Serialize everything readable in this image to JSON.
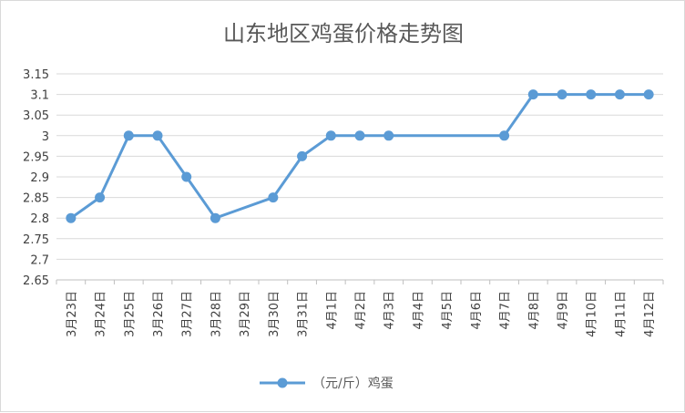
{
  "chart_data": {
    "type": "line",
    "title": "山东地区鸡蛋价格走势图",
    "xlabel": "",
    "ylabel": "",
    "categories": [
      "3月23日",
      "3月24日",
      "3月25日",
      "3月26日",
      "3月27日",
      "3月28日",
      "3月29日",
      "3月30日",
      "3月31日",
      "4月1日",
      "4月2日",
      "4月3日",
      "4月4日",
      "4月5日",
      "4月6日",
      "4月7日",
      "4月8日",
      "4月9日",
      "4月10日",
      "4月11日",
      "4月12日"
    ],
    "series": [
      {
        "name": "（元/斤）鸡蛋",
        "values": [
          2.8,
          2.85,
          3.0,
          3.0,
          2.9,
          2.8,
          null,
          2.85,
          2.95,
          3.0,
          3.0,
          3.0,
          null,
          null,
          null,
          3.0,
          3.1,
          3.1,
          3.1,
          3.1,
          3.1
        ],
        "color": "#5b9bd5"
      }
    ],
    "ylim": [
      2.65,
      3.15
    ],
    "yticks": [
      "2.65",
      "2.7",
      "2.75",
      "2.8",
      "2.85",
      "2.9",
      "2.95",
      "3",
      "3.05",
      "3.1",
      "3.15"
    ],
    "grid": true,
    "legend": "bottom-center"
  }
}
